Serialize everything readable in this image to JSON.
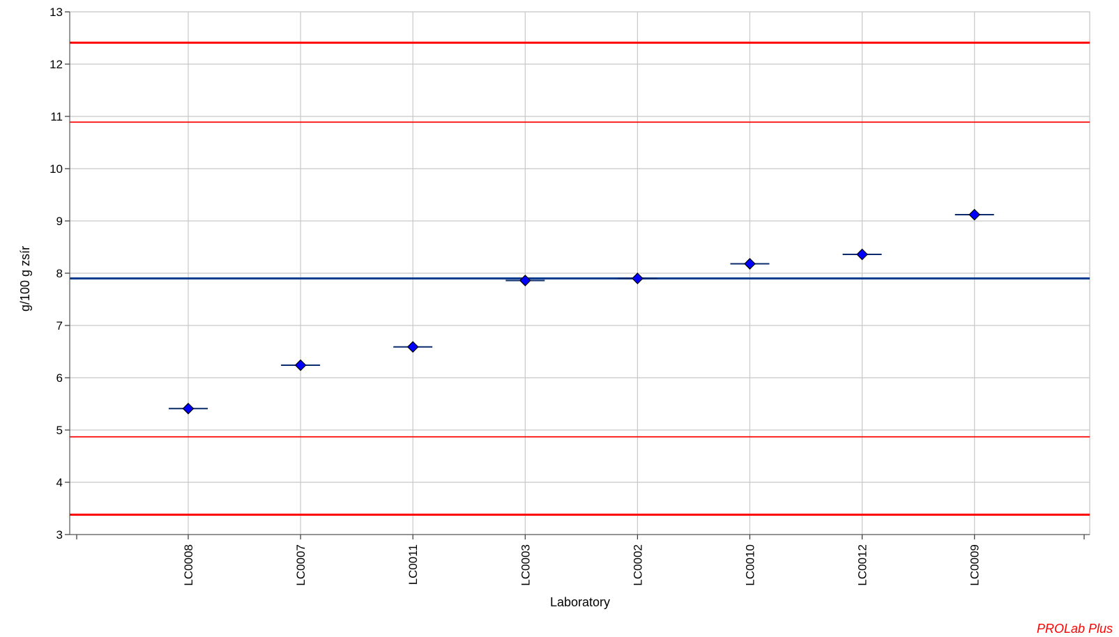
{
  "chart_data": {
    "type": "scatter",
    "title": "",
    "xlabel": "Laboratory",
    "ylabel": "g/100 g zsír",
    "ylim": [
      3,
      13
    ],
    "y_ticks": [
      3,
      4,
      5,
      6,
      7,
      8,
      9,
      10,
      11,
      12,
      13
    ],
    "grid": true,
    "categories": [
      "LC0008",
      "LC0007",
      "LC0011",
      "LC0003",
      "LC0002",
      "LC0010",
      "LC0012",
      "LC0009"
    ],
    "series": [
      {
        "values": [
          5.41,
          6.24,
          6.59,
          7.86,
          7.9,
          8.18,
          8.36,
          9.12
        ],
        "error_half_width": [
          0.0,
          0.0,
          0.0,
          0.0,
          0.0,
          0.0,
          0.0,
          0.0
        ],
        "marker": "diamond",
        "color": "#0000ff"
      }
    ],
    "reference_lines": [
      {
        "y": 7.9,
        "color": "#0a3d8f",
        "role": "assigned value"
      },
      {
        "y": 10.89,
        "color": "#ff0000",
        "role": "upper warning limit"
      },
      {
        "y": 4.87,
        "color": "#ff0000",
        "role": "lower warning limit"
      },
      {
        "y": 12.41,
        "color": "#ff0000",
        "role": "upper action limit"
      },
      {
        "y": 3.38,
        "color": "#ff0000",
        "role": "lower action limit"
      }
    ],
    "watermark": "PROLab Plus",
    "watermark_color": "#ff0000"
  }
}
